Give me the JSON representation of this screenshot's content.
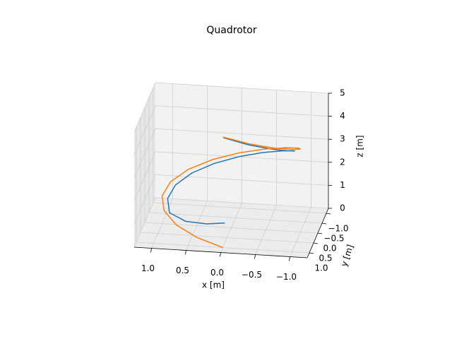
{
  "chart_data": {
    "type": "line3d",
    "title": "Quadrotor",
    "xlabel": "x [m]",
    "ylabel": "y [m]",
    "zlabel": "z [m]",
    "xlim": [
      -1.25,
      1.25
    ],
    "ylim": [
      -1.25,
      1.25
    ],
    "zlim": [
      0,
      5
    ],
    "xticks": [
      {
        "value": -1,
        "label": "−1.0"
      },
      {
        "value": -0.5,
        "label": "−0.5"
      },
      {
        "value": 0,
        "label": "0.0"
      },
      {
        "value": 0.5,
        "label": "0.5"
      },
      {
        "value": 1,
        "label": "1.0"
      }
    ],
    "yticks": [
      {
        "value": -1,
        "label": "−1.0"
      },
      {
        "value": -0.5,
        "label": "−0.5"
      },
      {
        "value": 0,
        "label": "0.0"
      },
      {
        "value": 0.5,
        "label": "0.5"
      },
      {
        "value": 1,
        "label": "1.0"
      }
    ],
    "zticks": [
      0,
      1,
      2,
      3,
      4,
      5
    ],
    "grid": true,
    "series": [
      {
        "color": "#1f77b4",
        "x": [
          0,
          -0.35,
          -0.65,
          -0.85,
          -0.92,
          -0.85,
          -0.65,
          -0.35,
          0,
          0.35,
          0.65,
          0.85,
          0.92,
          0.85,
          0.6,
          0.3,
          0.05
        ],
        "y": [
          0.92,
          0.85,
          0.65,
          0.35,
          0,
          -0.35,
          -0.65,
          -0.85,
          -0.92,
          -0.85,
          -0.65,
          -0.35,
          0,
          0.35,
          0.5,
          0.45,
          0.35
        ],
        "z": [
          4.7,
          4.4,
          4.1,
          3.8,
          3.5,
          3.2,
          2.9,
          2.6,
          2.3,
          2.0,
          1.7,
          1.4,
          1.1,
          0.8,
          0.6,
          0.5,
          0.5
        ]
      },
      {
        "color": "#ff7f0e",
        "x": [
          0,
          -0.383,
          -0.707,
          -0.924,
          -1,
          -0.924,
          -0.707,
          -0.383,
          0,
          0.383,
          0.707,
          0.924,
          1,
          0.924,
          0.707,
          0.383,
          0
        ],
        "y": [
          1,
          0.924,
          0.707,
          0.383,
          0,
          -0.383,
          -0.707,
          -0.924,
          -1,
          -0.924,
          -0.707,
          -0.383,
          0,
          0.383,
          0.707,
          0.924,
          1
        ],
        "z": [
          4.8,
          4.5,
          4.2,
          3.9,
          3.6,
          3.3,
          3.0,
          2.7,
          2.4,
          2.1,
          1.8,
          1.5,
          1.2,
          0.9,
          0.6,
          0.3,
          0
        ]
      }
    ]
  }
}
